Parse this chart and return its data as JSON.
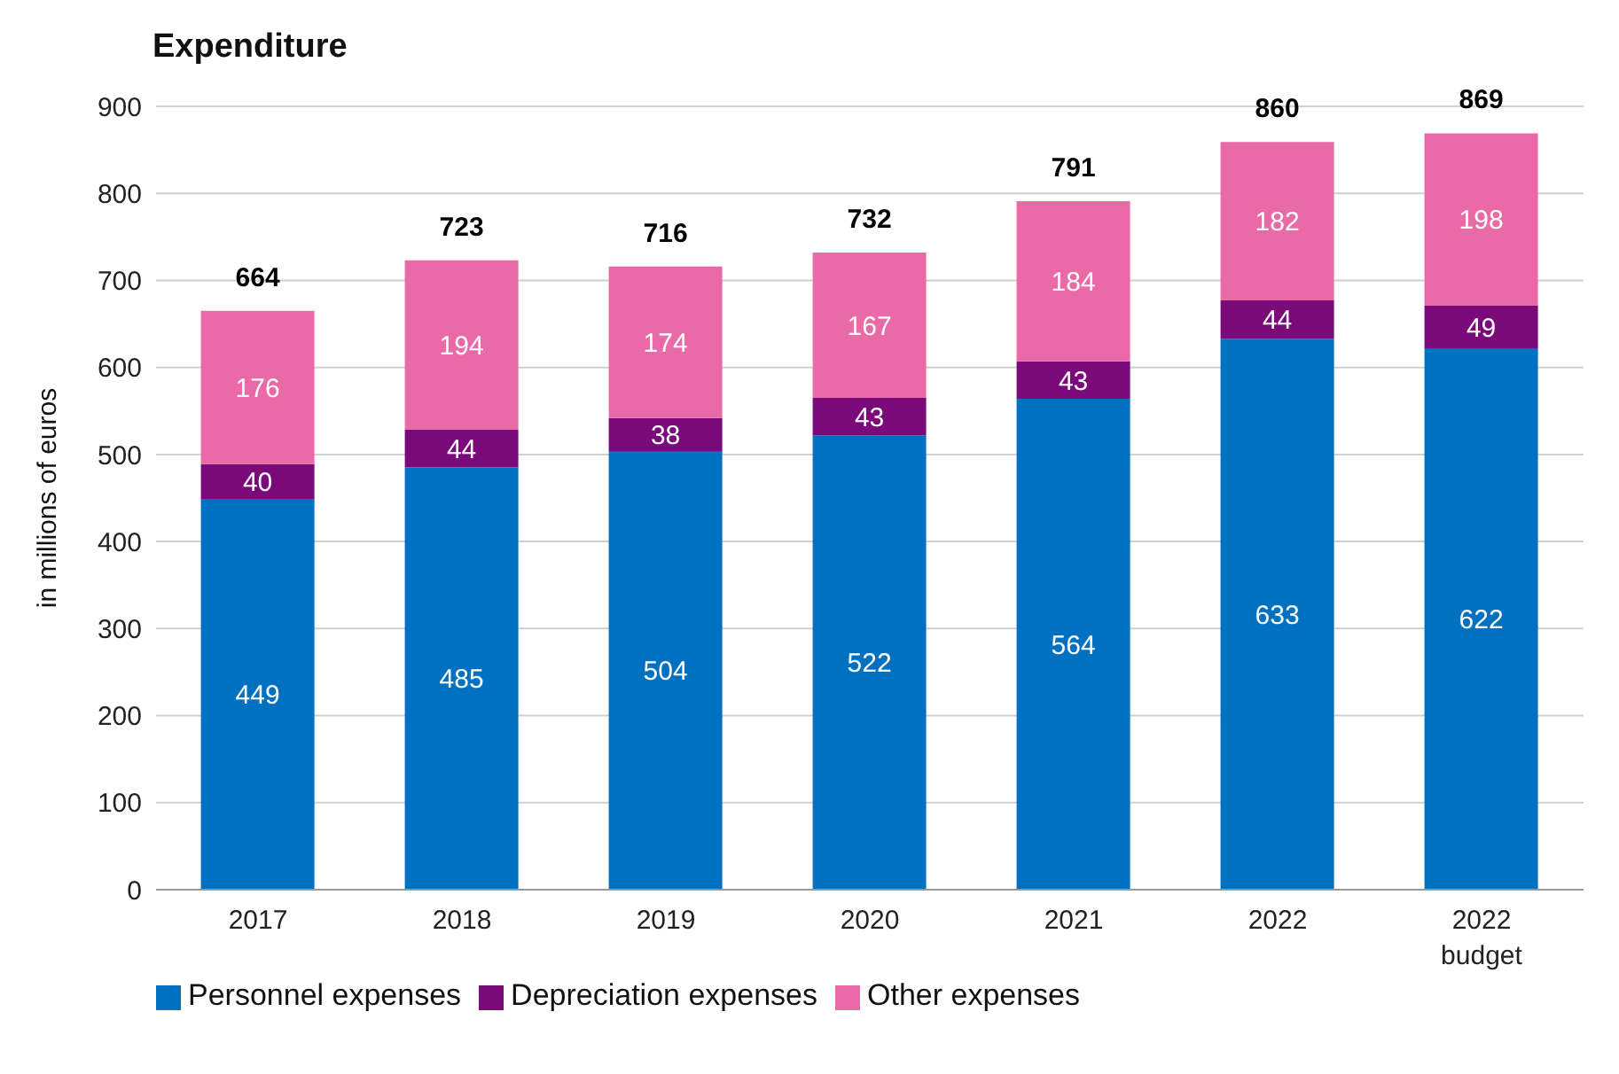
{
  "chart_data": {
    "type": "bar",
    "title": "Expenditure",
    "ylabel": "in millions of euros",
    "categories": [
      "2017",
      "2018",
      "2019",
      "2020",
      "2021",
      "2022",
      "2022 budget"
    ],
    "series": [
      {
        "name": "Personnel expenses",
        "color": "#0070c0",
        "values": [
          449,
          485,
          504,
          522,
          564,
          633,
          622
        ]
      },
      {
        "name": "Depreciation expenses",
        "color": "#7a0a7a",
        "values": [
          40,
          44,
          38,
          43,
          43,
          44,
          49
        ]
      },
      {
        "name": "Other expenses",
        "color": "#ea6aa7",
        "values": [
          176,
          194,
          174,
          167,
          184,
          182,
          198
        ]
      }
    ],
    "stacked": true,
    "data_labels": true,
    "totals": [
      "664",
      "723",
      "716",
      "732",
      "791",
      "860",
      "869"
    ],
    "ylim": [
      0,
      900
    ],
    "yticks": [
      0,
      100,
      200,
      300,
      400,
      500,
      600,
      700,
      800,
      900
    ],
    "grid": "y",
    "legend": "bottom"
  }
}
